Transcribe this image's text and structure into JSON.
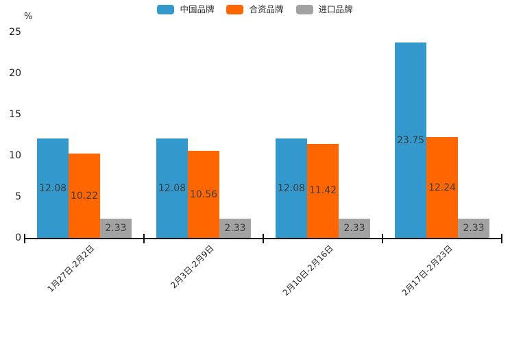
{
  "chart_data": {
    "type": "bar",
    "title": "",
    "unit_label": "%",
    "categories": [
      "1月27日-2月2日",
      "2月3日-2月9日",
      "2月10日-2月16日",
      "2月17日-2月23日"
    ],
    "series": [
      {
        "name": "中国品牌",
        "color": "#3398cc",
        "values": [
          12.08,
          12.08,
          12.08,
          23.75
        ]
      },
      {
        "name": "合资品牌",
        "color": "#ff6600",
        "values": [
          10.22,
          10.56,
          11.42,
          12.24
        ]
      },
      {
        "name": "进口品牌",
        "color": "#a2a2a2",
        "values": [
          2.33,
          2.33,
          2.33,
          2.33
        ]
      }
    ],
    "y_ticks": [
      0,
      5,
      10,
      15,
      20,
      25
    ],
    "ylim": [
      0,
      25
    ],
    "grid": false,
    "legend_position": "top",
    "value_labels": true,
    "value_label_color": "#3d3d3d",
    "axis_color": "#111111",
    "tick_text_color": "#262626"
  }
}
